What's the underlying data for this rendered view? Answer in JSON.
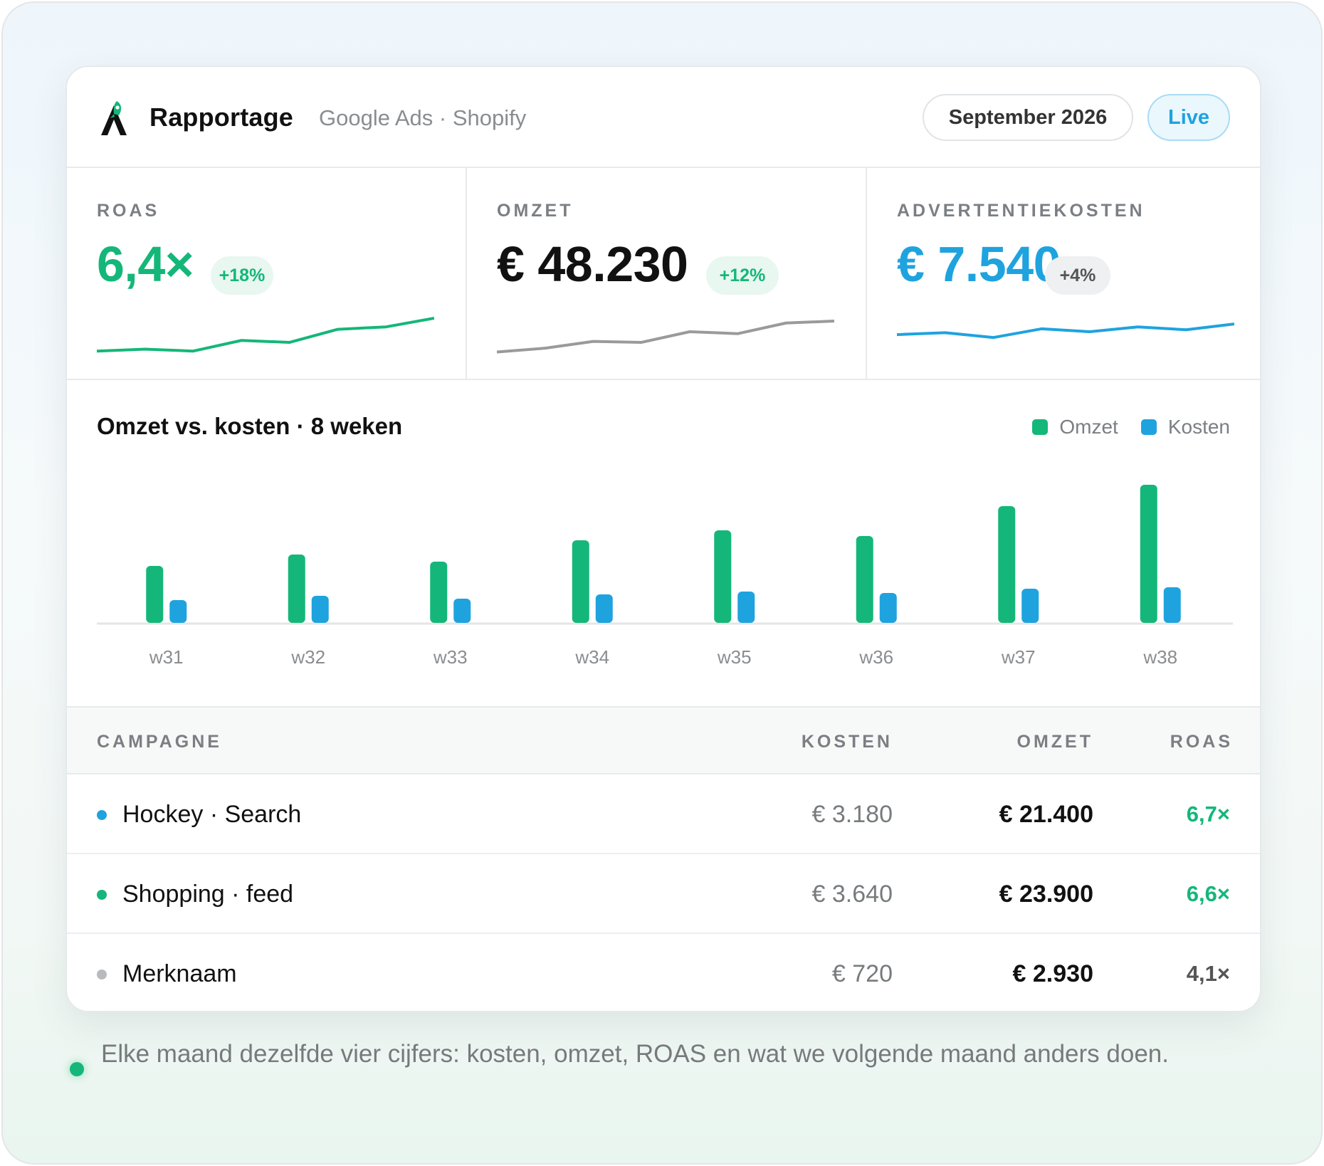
{
  "header": {
    "title": "Rapportage",
    "subtitle": "Google Ads · Shopify",
    "period": "September 2026",
    "status": "Live"
  },
  "kpis": [
    {
      "label": "ROAS",
      "value": "6,4×",
      "change": "+18%",
      "color": "#14b779",
      "badge_bg": "#e8f7f0",
      "badge_color": "#14b779",
      "trend": [
        0.1,
        0.14,
        0.1,
        0.32,
        0.28,
        0.55,
        0.6,
        0.78
      ]
    },
    {
      "label": "OMZET",
      "value": "€ 48.230",
      "change": "+12%",
      "color": "#111111",
      "badge_bg": "#e8f7f0",
      "badge_color": "#14b779",
      "trend": [
        0.08,
        0.16,
        0.3,
        0.28,
        0.5,
        0.46,
        0.68,
        0.72
      ]
    },
    {
      "label": "ADVERTENTIEKOSTEN",
      "value": "€ 7.540",
      "change": "+4%",
      "color": "#1fa3de",
      "badge_bg": "#eef0f1",
      "badge_color": "#555555",
      "trend": [
        0.44,
        0.48,
        0.38,
        0.56,
        0.5,
        0.6,
        0.54,
        0.66
      ]
    }
  ],
  "chart": {
    "title": "Omzet vs. kosten · 8 weken",
    "legend": [
      {
        "name": "Omzet",
        "color": "#14b779"
      },
      {
        "name": "Kosten",
        "color": "#1fa3de"
      }
    ]
  },
  "chart_data": {
    "type": "bar",
    "title": "Omzet vs. kosten · 8 weken",
    "categories": [
      "w31",
      "w32",
      "w33",
      "w34",
      "w35",
      "w36",
      "w37",
      "w38"
    ],
    "series": [
      {
        "name": "Omzet",
        "values": [
          40,
          48,
          43,
          58,
          65,
          61,
          82,
          97
        ]
      },
      {
        "name": "Kosten",
        "values": [
          16,
          19,
          17,
          20,
          22,
          21,
          24,
          25
        ]
      }
    ],
    "ylim": [
      0,
      100
    ],
    "grid": false,
    "legend_position": "top-right"
  },
  "table": {
    "headers": {
      "campaign": "CAMPAGNE",
      "cost": "KOSTEN",
      "revenue": "OMZET",
      "roas": "ROAS"
    },
    "rows": [
      {
        "name": "Hockey · Search",
        "cost": "€ 3.180",
        "revenue": "€ 21.400",
        "roas": "6,7×",
        "dot": "#1fa3de",
        "roas_color": "#14b779"
      },
      {
        "name": "Shopping · feed",
        "cost": "€ 3.640",
        "revenue": "€ 23.900",
        "roas": "6,6×",
        "dot": "#14b779",
        "roas_color": "#14b779"
      },
      {
        "name": "Merknaam",
        "cost": "€ 720",
        "revenue": "€ 2.930",
        "roas": "4,1×",
        "dot": "#b8bbbd",
        "roas_color": "#555555"
      }
    ]
  },
  "footnote": "Elke maand dezelfde vier cijfers: kosten, omzet, ROAS en wat we volgende maand anders doen."
}
